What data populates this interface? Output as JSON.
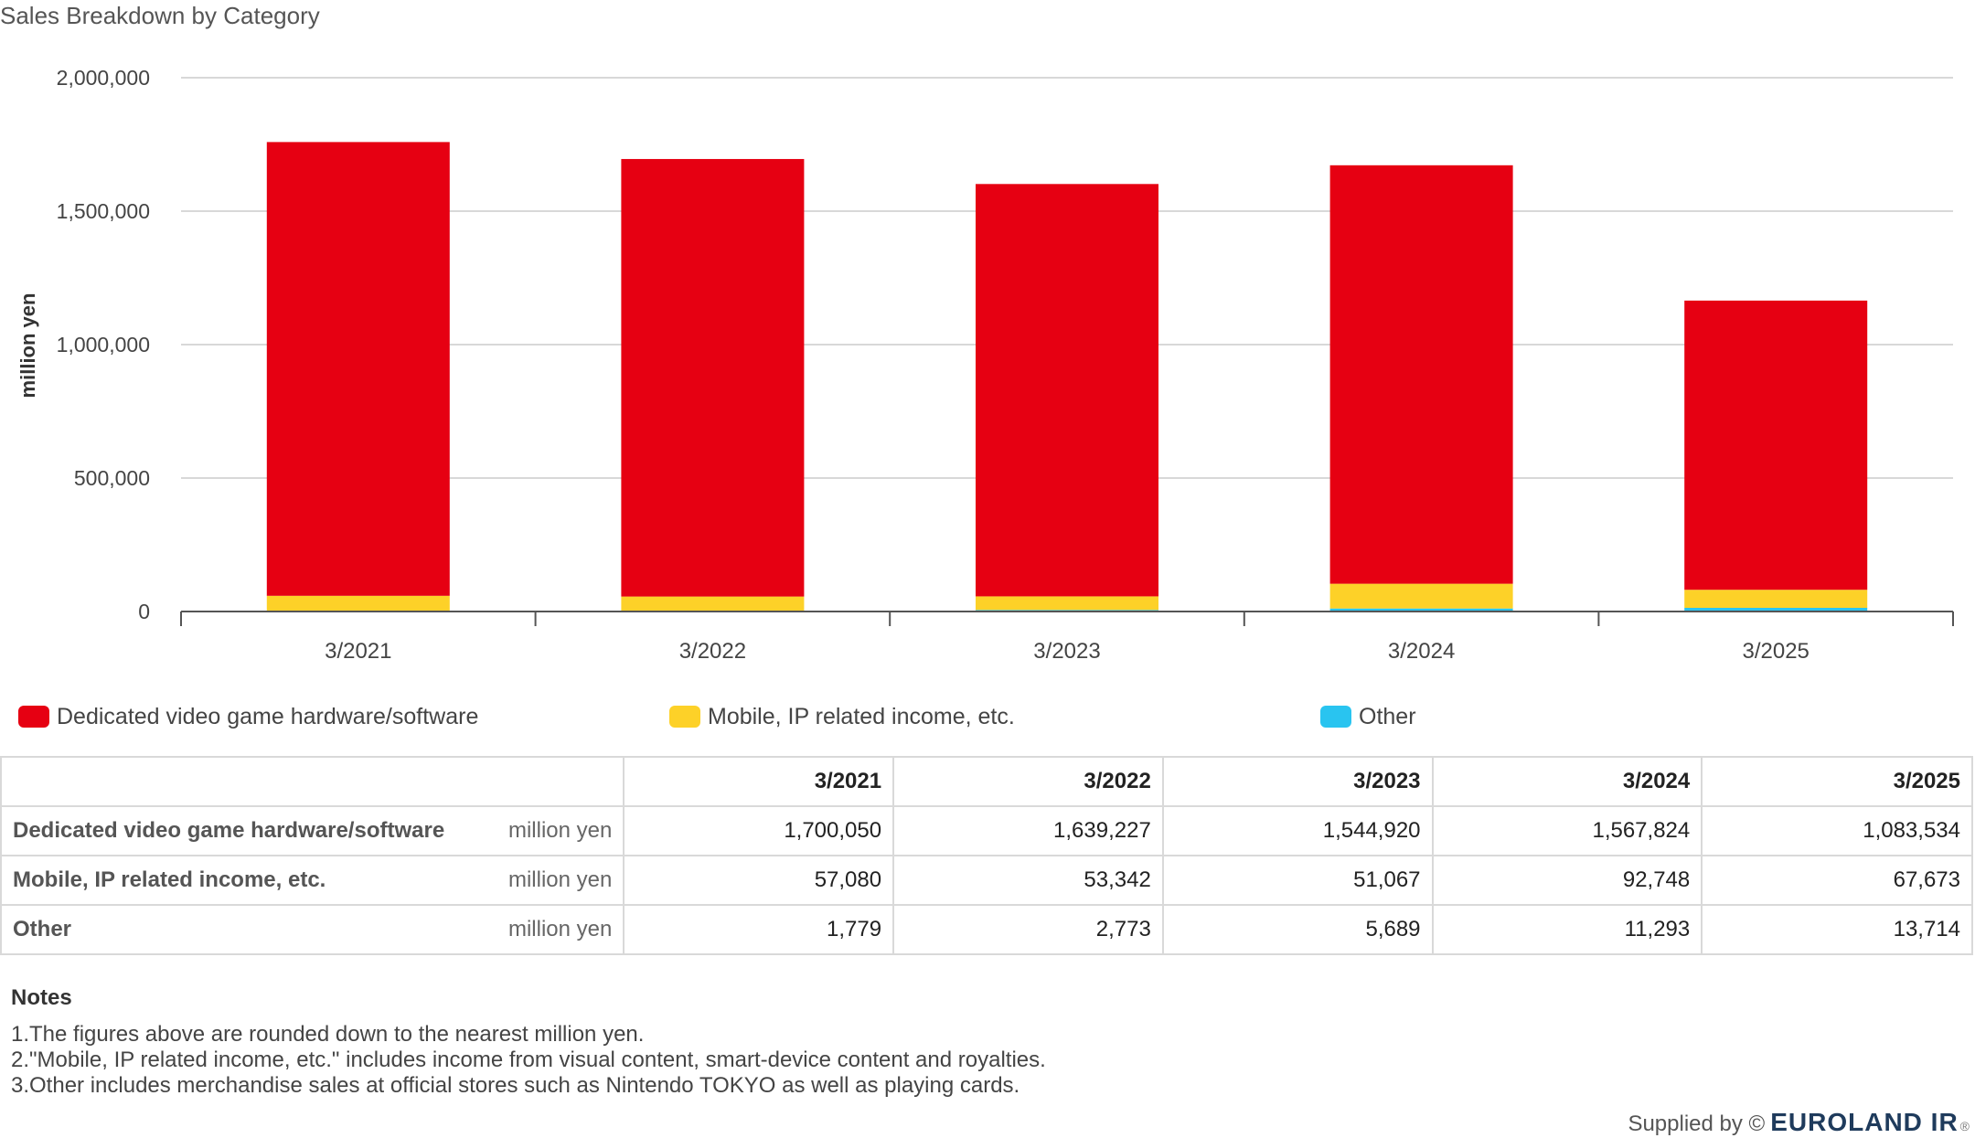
{
  "chart_data": {
    "type": "bar",
    "stacked": true,
    "title": "Sales Breakdown by Category",
    "ylabel": "million yen",
    "xlabel": "",
    "ylim": [
      0,
      2000000
    ],
    "y_ticks": [
      "0",
      "500,000",
      "1,000,000",
      "1,500,000",
      "2,000,000"
    ],
    "categories": [
      "3/2021",
      "3/2022",
      "3/2023",
      "3/2024",
      "3/2025"
    ],
    "grid": true,
    "legend_position": "bottom",
    "series": [
      {
        "name": "Other",
        "color": "#29c4f0",
        "values": [
          1779,
          2773,
          5689,
          11293,
          13714
        ]
      },
      {
        "name": "Mobile, IP related income, etc.",
        "color": "#fdd128",
        "values": [
          57080,
          53342,
          51067,
          92748,
          67673
        ]
      },
      {
        "name": "Dedicated video game hardware/software",
        "color": "#e60012",
        "values": [
          1700050,
          1639227,
          1544920,
          1567824,
          1083534
        ]
      }
    ]
  },
  "legend": [
    {
      "label": "Dedicated video game hardware/software",
      "color": "#e60012"
    },
    {
      "label": "Mobile, IP related income, etc.",
      "color": "#fdd128"
    },
    {
      "label": "Other",
      "color": "#29c4f0"
    }
  ],
  "table": {
    "headers": [
      "3/2021",
      "3/2022",
      "3/2023",
      "3/2024",
      "3/2025"
    ],
    "rows": [
      {
        "label": "Dedicated video game hardware/software",
        "unit": "million yen",
        "values": [
          "1,700,050",
          "1,639,227",
          "1,544,920",
          "1,567,824",
          "1,083,534"
        ]
      },
      {
        "label": "Mobile, IP related income, etc.",
        "unit": "million yen",
        "values": [
          "57,080",
          "53,342",
          "51,067",
          "92,748",
          "67,673"
        ]
      },
      {
        "label": "Other",
        "unit": "million yen",
        "values": [
          "1,779",
          "2,773",
          "5,689",
          "11,293",
          "13,714"
        ]
      }
    ]
  },
  "notes": {
    "title": "Notes",
    "lines": [
      "1.The figures above are rounded down to the nearest million yen.",
      "2.\"Mobile, IP related income, etc.\" includes income from visual content, smart-device content and royalties.",
      "3.Other includes merchandise sales at official stores such as Nintendo TOKYO as well as playing cards."
    ]
  },
  "footer": {
    "supplied_by": "Supplied by ©",
    "brand": "EUROLAND IR",
    "reg": "®"
  }
}
